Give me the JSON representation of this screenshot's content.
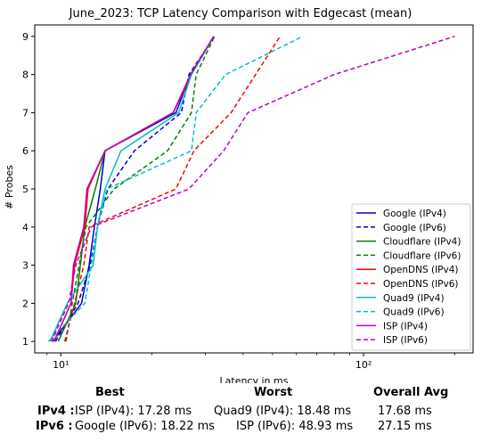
{
  "chart_data": {
    "type": "line",
    "title": "June_2023: TCP Latency Comparison with Edgecast (mean)",
    "xlabel": "Latency in ms",
    "ylabel": "# Probes",
    "xscale": "log",
    "xlim": [
      8.2,
      230
    ],
    "ylim": [
      0.7,
      9.3
    ],
    "xticks": [
      {
        "value": 10,
        "label": "10¹"
      },
      {
        "value": 100,
        "label": "10²"
      }
    ],
    "yticks": [
      1,
      2,
      3,
      4,
      5,
      6,
      7,
      8,
      9
    ],
    "legend_position": "lower right",
    "grid": false,
    "series": [
      {
        "name": "Google (IPv4)",
        "color": "#0000cc",
        "dash": "solid",
        "points": [
          [
            9.4,
            1
          ],
          [
            11.7,
            2
          ],
          [
            12.4,
            3
          ],
          [
            12.9,
            4
          ],
          [
            13.5,
            5
          ],
          [
            14.0,
            6
          ],
          [
            24.0,
            7
          ],
          [
            26.8,
            8
          ],
          [
            32.0,
            9
          ]
        ]
      },
      {
        "name": "Google (IPv6)",
        "color": "#0000cc",
        "dash": "dashed",
        "points": [
          [
            9.6,
            1
          ],
          [
            11.4,
            2
          ],
          [
            12.5,
            3
          ],
          [
            13.2,
            4
          ],
          [
            14.3,
            5
          ],
          [
            17.5,
            6
          ],
          [
            25.0,
            7
          ],
          [
            26.5,
            8
          ],
          [
            32.2,
            9
          ]
        ]
      },
      {
        "name": "Cloudflare (IPv4)",
        "color": "#008000",
        "dash": "solid",
        "points": [
          [
            9.8,
            1
          ],
          [
            11.2,
            2
          ],
          [
            11.6,
            3
          ],
          [
            12.0,
            4
          ],
          [
            13.0,
            5
          ],
          [
            14.0,
            6
          ],
          [
            23.5,
            7
          ],
          [
            27.0,
            8
          ],
          [
            32.0,
            9
          ]
        ]
      },
      {
        "name": "Cloudflare (IPv6)",
        "color": "#008000",
        "dash": "dashed",
        "points": [
          [
            10.4,
            1
          ],
          [
            10.9,
            2
          ],
          [
            11.5,
            3
          ],
          [
            12.1,
            4
          ],
          [
            15.0,
            5
          ],
          [
            22.5,
            6
          ],
          [
            27.0,
            7
          ],
          [
            28.0,
            8
          ],
          [
            32.2,
            9
          ]
        ]
      },
      {
        "name": "OpenDNS (IPv4)",
        "color": "#ff0000",
        "dash": "solid",
        "points": [
          [
            9.5,
            1
          ],
          [
            10.8,
            2
          ],
          [
            11.1,
            3
          ],
          [
            12.0,
            4
          ],
          [
            12.3,
            5
          ],
          [
            14.0,
            6
          ],
          [
            23.5,
            7
          ],
          [
            27.0,
            8
          ],
          [
            32.0,
            9
          ]
        ]
      },
      {
        "name": "OpenDNS (IPv6)",
        "color": "#ff0000",
        "dash": "dashed",
        "points": [
          [
            10.3,
            1
          ],
          [
            11.1,
            2
          ],
          [
            11.9,
            3
          ],
          [
            12.4,
            4
          ],
          [
            24.0,
            5
          ],
          [
            27.5,
            6
          ],
          [
            36.5,
            7
          ],
          [
            44.0,
            8
          ],
          [
            53.0,
            9
          ]
        ]
      },
      {
        "name": "Quad9 (IPv4)",
        "color": "#00bfbf",
        "dash": "solid",
        "points": [
          [
            9.2,
            1
          ],
          [
            10.5,
            2
          ],
          [
            12.8,
            3
          ],
          [
            13.2,
            4
          ],
          [
            14.0,
            5
          ],
          [
            15.8,
            6
          ],
          [
            24.5,
            7
          ],
          [
            27.0,
            8
          ],
          [
            32.0,
            9
          ]
        ]
      },
      {
        "name": "Quad9 (IPv6)",
        "color": "#00bfbf",
        "dash": "dashed",
        "points": [
          [
            9.1,
            1
          ],
          [
            12.0,
            2
          ],
          [
            12.6,
            3
          ],
          [
            13.2,
            4
          ],
          [
            14.2,
            5
          ],
          [
            27.0,
            6
          ],
          [
            28.0,
            7
          ],
          [
            35.0,
            8
          ],
          [
            63.0,
            9
          ]
        ]
      },
      {
        "name": "ISP (IPv4)",
        "color": "#bf00bf",
        "dash": "solid",
        "points": [
          [
            9.5,
            1
          ],
          [
            10.8,
            2
          ],
          [
            11.0,
            3
          ],
          [
            11.9,
            4
          ],
          [
            12.2,
            5
          ],
          [
            14.0,
            6
          ],
          [
            23.5,
            7
          ],
          [
            26.8,
            8
          ],
          [
            32.0,
            9
          ]
        ]
      },
      {
        "name": "ISP (IPv6)",
        "color": "#bf00bf",
        "dash": "dashed",
        "points": [
          [
            9.3,
            1
          ],
          [
            10.6,
            2
          ],
          [
            11.2,
            3
          ],
          [
            12.6,
            4
          ],
          [
            26.5,
            5
          ],
          [
            34.5,
            6
          ],
          [
            41.5,
            7
          ],
          [
            80.0,
            8
          ],
          [
            200.0,
            9
          ]
        ]
      }
    ]
  },
  "summary": {
    "headers": {
      "best": "Best",
      "worst": "Worst",
      "avg": "Overall Avg"
    },
    "rows": [
      {
        "label": "IPv4 :",
        "best": "ISP (IPv4): 17.28 ms",
        "worst": "Quad9 (IPv4): 18.48 ms",
        "avg": "17.68 ms"
      },
      {
        "label": "IPv6 :",
        "best": "Google (IPv6): 18.22 ms",
        "worst": "ISP (IPv6): 48.93 ms",
        "avg": "27.15 ms"
      }
    ]
  }
}
